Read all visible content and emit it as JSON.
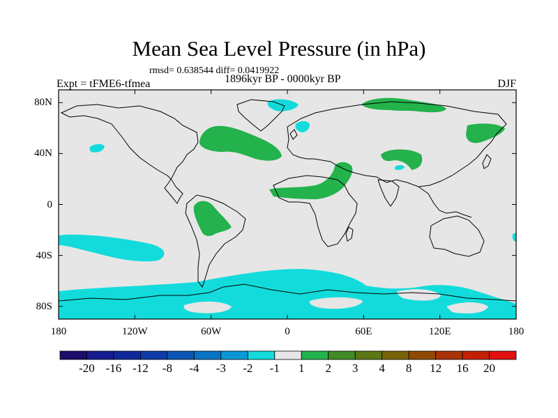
{
  "title": "Mean Sea Level Pressure (in hPa)",
  "stats": "rmsd= 0.638544 diff= 0.0419922",
  "experiment": "Expt = tFME6-tfmea",
  "period": "1896kyr BP - 0000kyr BP",
  "season": "DJF",
  "colors": {
    "background": "#e6e6e6",
    "coast": "#000000",
    "neg1": "#13dbdb",
    "neg2": "#1abde3",
    "pos1": "#23b24c"
  },
  "y_axis": {
    "ticks": [
      "80N",
      "40N",
      "0",
      "40S",
      "80S"
    ],
    "values": [
      80,
      40,
      0,
      -40,
      -80
    ],
    "range": [
      -90,
      90
    ]
  },
  "x_axis": {
    "ticks": [
      "180",
      "120W",
      "60W",
      "0",
      "60E",
      "120E",
      "180"
    ],
    "values": [
      -180,
      -120,
      -60,
      0,
      60,
      120,
      180
    ],
    "range": [
      -180,
      180
    ]
  },
  "colorbar": {
    "labels": [
      "-20",
      "-16",
      "-12",
      "-8",
      "-4",
      "-3",
      "-2",
      "-1",
      "1",
      "2",
      "3",
      "4",
      "8",
      "12",
      "16",
      "20"
    ],
    "colors": [
      "#1a0d6b",
      "#151b8e",
      "#10279a",
      "#0e3ba8",
      "#0b55b5",
      "#0873c4",
      "#0a97d6",
      "#13dbdb",
      "#e6e6e6",
      "#23b24c",
      "#418a25",
      "#5c7715",
      "#796308",
      "#8e4a05",
      "#a83306",
      "#c22005",
      "#e01010"
    ]
  }
}
